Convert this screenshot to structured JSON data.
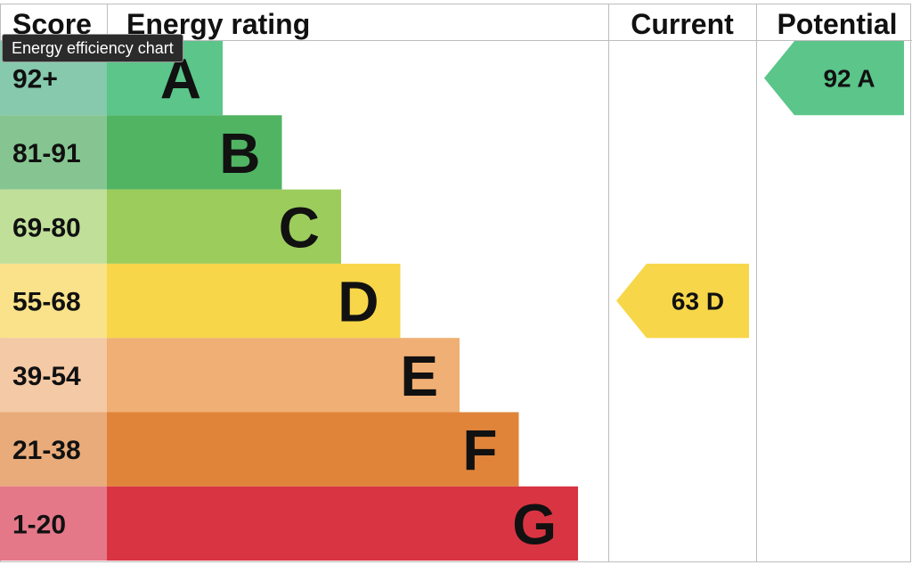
{
  "chart_data": {
    "type": "table",
    "headers": {
      "score": "Score",
      "rating": "Energy rating",
      "current": "Current",
      "potential": "Potential"
    },
    "bands": [
      {
        "letter": "A",
        "range": "92+",
        "color": "#5bc58a",
        "score_color": "#86c9ad"
      },
      {
        "letter": "B",
        "range": "81-91",
        "color": "#50b463",
        "score_color": "#86c591"
      },
      {
        "letter": "C",
        "range": "69-80",
        "color": "#9ccc5c",
        "score_color": "#c0df99"
      },
      {
        "letter": "D",
        "range": "55-68",
        "color": "#f7d649",
        "score_color": "#f9e28a"
      },
      {
        "letter": "E",
        "range": "39-54",
        "color": "#f0af74",
        "score_color": "#f4c9a5"
      },
      {
        "letter": "F",
        "range": "21-38",
        "color": "#e0843a",
        "score_color": "#e9ab7a"
      },
      {
        "letter": "G",
        "range": "1-20",
        "color": "#d93442",
        "score_color": "#e47889"
      }
    ],
    "current": {
      "value": 63,
      "letter": "D",
      "label": "63  D"
    },
    "potential": {
      "value": 92,
      "letter": "A",
      "label": "92  A"
    }
  },
  "tooltip": {
    "text": "Energy efficiency chart"
  }
}
